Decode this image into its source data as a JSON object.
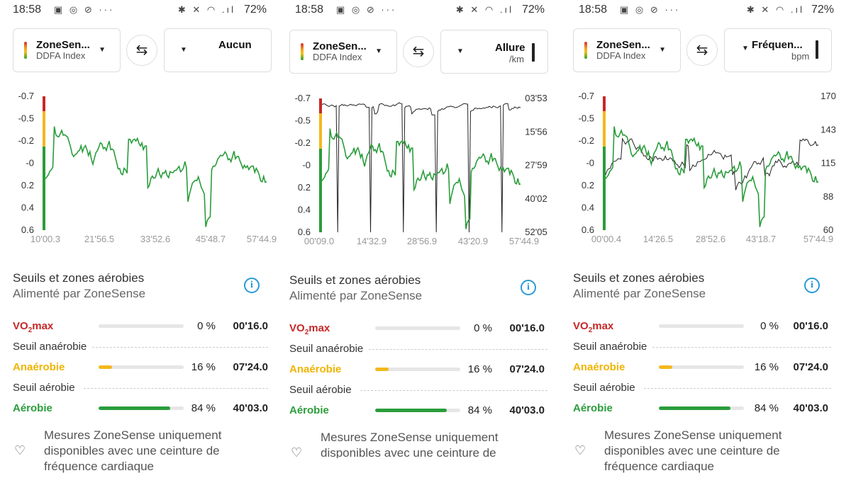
{
  "status": {
    "time": "18:58",
    "battery": "72%",
    "left_icons": "▣ ◎ ⊘  ···",
    "right_icons": "✱ ✕ ◠ .ıl"
  },
  "panels": [
    {
      "primary": {
        "name": "ZoneSen...",
        "sub": "DDFA Index"
      },
      "secondary": {
        "name": "Aucun",
        "unit": ""
      },
      "chart": {
        "left_ticks": [
          "-0.7",
          "-0.5",
          "-0.2",
          "-0",
          "0.2",
          "0.4",
          "0.6"
        ],
        "right_ticks": [],
        "x_ticks": [
          "10'00.3",
          "21'56.5",
          "33'52.6",
          "45'48.7",
          "57'44.9"
        ]
      }
    },
    {
      "primary": {
        "name": "ZoneSen...",
        "sub": "DDFA Index"
      },
      "secondary": {
        "name": "Allure",
        "unit": "/km"
      },
      "chart": {
        "left_ticks": [
          "-0.7",
          "-0.5",
          "-0.2",
          "-0",
          "0.2",
          "0.4",
          "0.6"
        ],
        "right_ticks": [
          "03'53",
          "15'56",
          "27'59",
          "40'02",
          "52'05"
        ],
        "x_ticks": [
          "00'09.0",
          "14'32.9",
          "28'56.9",
          "43'20.9",
          "57'44.9"
        ]
      }
    },
    {
      "primary": {
        "name": "ZoneSen...",
        "sub": "DDFA Index"
      },
      "secondary": {
        "name": "Fréquen...",
        "unit": "bpm"
      },
      "chart": {
        "left_ticks": [
          "-0.7",
          "-0.5",
          "-0.2",
          "-0",
          "0.2",
          "0.4",
          "0.6"
        ],
        "right_ticks": [
          "170",
          "143",
          "115",
          "88",
          "60"
        ],
        "x_ticks": [
          "00'00.4",
          "14'26.5",
          "28'52.6",
          "43'18.7",
          "57'44.9"
        ]
      }
    }
  ],
  "section": {
    "title": "Seuils et zones aérobies",
    "subtitle": "Alimenté par ZoneSense"
  },
  "zones": {
    "vo2max": {
      "label_main": "VO",
      "label_sub": "2",
      "label_end": "max",
      "pct": "0 %",
      "pct_value": 0,
      "duration": "00'16.0"
    },
    "anaerobic_threshold": "Seuil anaérobie",
    "anaerobic": {
      "label": "Anaérobie",
      "pct": "16 %",
      "pct_value": 16,
      "duration": "07'24.0"
    },
    "aerobic_threshold": "Seuil aérobie",
    "aerobic": {
      "label": "Aérobie",
      "pct": "84 %",
      "pct_value": 84,
      "duration": "40'03.0"
    }
  },
  "footer": {
    "line1": "Mesures ZoneSense uniquement",
    "line2": "disponibles avec une ceinture de",
    "line3": "fréquence cardiaque"
  },
  "colors": {
    "red": "#c62828",
    "yellow": "#f3b81c",
    "green": "#2a9d3b",
    "info": "#2a9ad8"
  }
}
